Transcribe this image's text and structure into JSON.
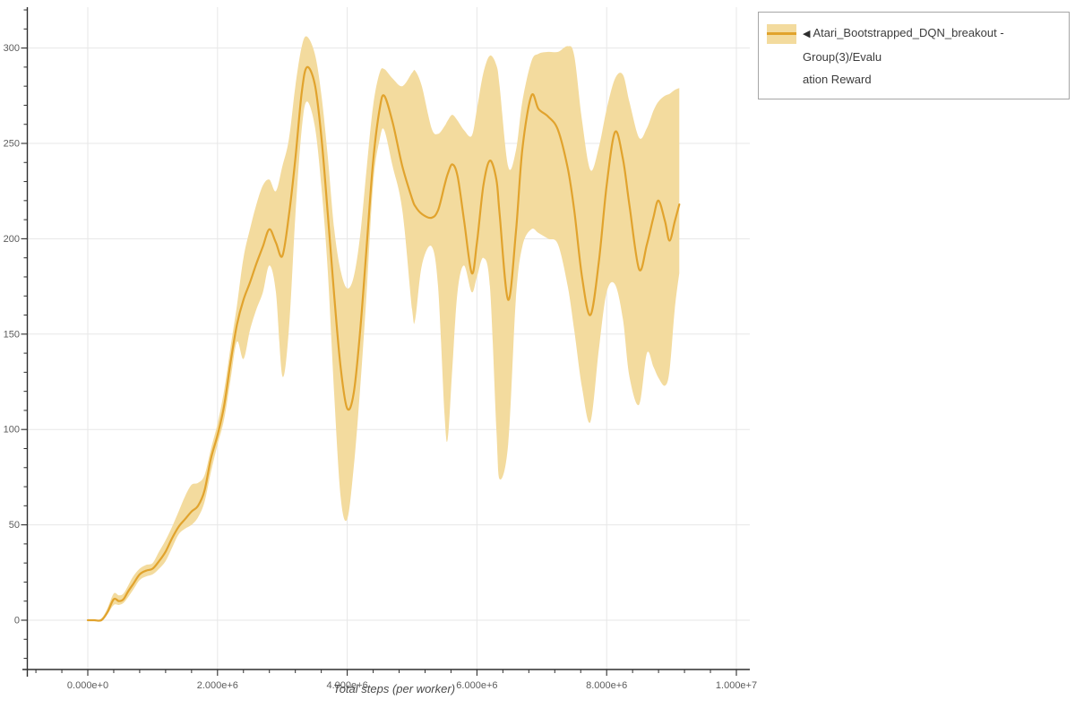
{
  "figure": {
    "legend": {
      "collapse_icon": "◀",
      "label_line1": "Atari_Bootstrapped_DQN_breakout - Group(3)/Evalu",
      "label_line2": "ation Reward",
      "full_label": "Atari_Bootstrapped_DQN_breakout - Group(3)/Evaluation Reward"
    }
  },
  "chart_data": {
    "type": "line",
    "title": "",
    "xlabel": "Total steps (per worker)",
    "ylabel": "",
    "xlim_msteps": [
      -1.0,
      10.2
    ],
    "ylim": [
      -26,
      321
    ],
    "grid": true,
    "legend_position": "top-right",
    "colors": {
      "line": "#e1a32d",
      "band": "#f3db9e",
      "grid": "#e7e7e7",
      "spine": "#2f2f2f",
      "tick_label": "#5c5c5c",
      "axis_title": "#4a4a4a",
      "legend_border": "#a6a6a6",
      "legend_text": "#3c3c3c"
    },
    "x_ticks": [
      {
        "msteps": 0,
        "label": "0.000e+0"
      },
      {
        "msteps": 2,
        "label": "2.000e+6"
      },
      {
        "msteps": 4,
        "label": "4.000e+6"
      },
      {
        "msteps": 6,
        "label": "6.000e+6"
      },
      {
        "msteps": 8,
        "label": "8.000e+6"
      },
      {
        "msteps": 10,
        "label": "1.000e+7"
      }
    ],
    "y_ticks": [
      {
        "value": 0,
        "label": "0"
      },
      {
        "value": 50,
        "label": "50"
      },
      {
        "value": 100,
        "label": "100"
      },
      {
        "value": 150,
        "label": "150"
      },
      {
        "value": 200,
        "label": "200"
      },
      {
        "value": 250,
        "label": "250"
      },
      {
        "value": 300,
        "label": "300"
      }
    ],
    "series": [
      {
        "name": "Atari_Bootstrapped_DQN_breakout - Group(3)/Evaluation Reward",
        "x_msteps": [
          0.0,
          0.1,
          0.21,
          0.3,
          0.4,
          0.48,
          0.55,
          0.62,
          0.7,
          0.8,
          0.9,
          1.0,
          1.1,
          1.2,
          1.3,
          1.4,
          1.5,
          1.6,
          1.7,
          1.8,
          1.9,
          2.0,
          2.1,
          2.2,
          2.3,
          2.4,
          2.5,
          2.6,
          2.7,
          2.8,
          2.9,
          3.0,
          3.1,
          3.2,
          3.3,
          3.38,
          3.5,
          3.6,
          3.7,
          3.8,
          3.9,
          4.0,
          4.1,
          4.2,
          4.3,
          4.4,
          4.5,
          4.57,
          4.7,
          4.85,
          5.0,
          5.05,
          5.15,
          5.3,
          5.4,
          5.5,
          5.55,
          5.62,
          5.7,
          5.8,
          5.92,
          6.0,
          6.1,
          6.2,
          6.3,
          6.35,
          6.48,
          6.6,
          6.7,
          6.84,
          6.95,
          7.1,
          7.25,
          7.4,
          7.5,
          7.62,
          7.75,
          7.88,
          8.0,
          8.13,
          8.25,
          8.35,
          8.5,
          8.62,
          8.72,
          8.8,
          8.9,
          8.97,
          9.05,
          9.12
        ],
        "reward": [
          0,
          0,
          0,
          4,
          11,
          10,
          11,
          15,
          19,
          24,
          26,
          27,
          31,
          36,
          43,
          49,
          53,
          57,
          60,
          68,
          85,
          97,
          112,
          135,
          155,
          168,
          177,
          187,
          196,
          205,
          198,
          191,
          212,
          242,
          277,
          290,
          281,
          254,
          213,
          170,
          132,
          111,
          119,
          152,
          196,
          241,
          268,
          275,
          261,
          238,
          221,
          217,
          213,
          211,
          215,
          228,
          234,
          239,
          233,
          210,
          182,
          198,
          228,
          241,
          231,
          213,
          168,
          203,
          247,
          275,
          268,
          264,
          257,
          237,
          215,
          180,
          160,
          188,
          228,
          256,
          242,
          218,
          184,
          197,
          211,
          220,
          209,
          199,
          209,
          218
        ],
        "band_lo": [
          0,
          0,
          0,
          3,
          8,
          8,
          9,
          12,
          16,
          21,
          23,
          24,
          27,
          31,
          38,
          45,
          48,
          50,
          54,
          62,
          78,
          92,
          105,
          126,
          146,
          137,
          152,
          163,
          172,
          186,
          172,
          128,
          152,
          212,
          258,
          272,
          259,
          228,
          183,
          118,
          64,
          53,
          80,
          122,
          172,
          229,
          252,
          257,
          238,
          215,
          163,
          158,
          186,
          196,
          175,
          108,
          95,
          132,
          172,
          186,
          172,
          180,
          190,
          175,
          100,
          74,
          92,
          168,
          196,
          205,
          203,
          200,
          197,
          175,
          152,
          122,
          104,
          142,
          172,
          176,
          158,
          128,
          113,
          140,
          133,
          127,
          123,
          131,
          163,
          182
        ],
        "band_hi": [
          0,
          0,
          1,
          6,
          14,
          13,
          14,
          18,
          23,
          27,
          29,
          30,
          36,
          42,
          49,
          57,
          65,
          71,
          72,
          76,
          90,
          103,
          120,
          143,
          165,
          190,
          205,
          218,
          228,
          231,
          225,
          238,
          252,
          280,
          301,
          306,
          297,
          276,
          243,
          205,
          183,
          174,
          180,
          202,
          237,
          270,
          287,
          289,
          284,
          280,
          287,
          288,
          280,
          258,
          255,
          259,
          262,
          265,
          262,
          257,
          254,
          268,
          287,
          296,
          291,
          280,
          238,
          246,
          272,
          293,
          297,
          298,
          298,
          301,
          296,
          262,
          236,
          248,
          268,
          284,
          286,
          272,
          253,
          258,
          267,
          272,
          275,
          276,
          278,
          279
        ]
      }
    ]
  }
}
